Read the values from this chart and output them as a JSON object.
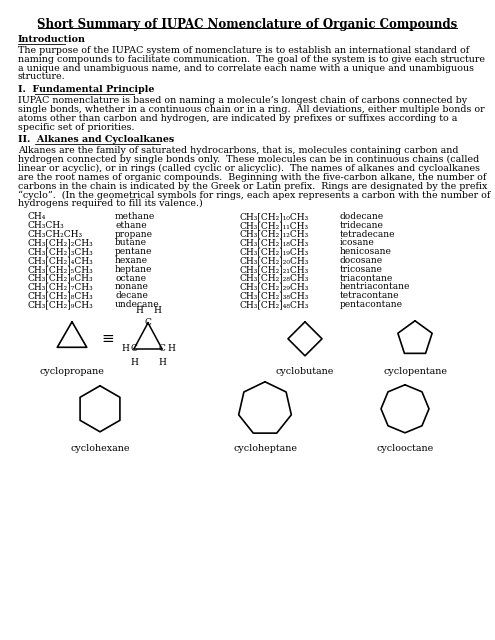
{
  "title": "Short Summary of IUPAC Nomenclature of Organic Compounds",
  "intro_heading": "Introduction",
  "intro_text": "The purpose of the IUPAC system of nomenclature is to establish an international standard of\nnaming compounds to facilitate communication.  The goal of the system is to give each structure\na unique and unambiguous name, and to correlate each name with a unique and unambiguous\nstructure.",
  "section1_heading": "I.  Fundamental Principle",
  "section1_text": "IUPAC nomenclature is based on naming a molecule’s longest chain of carbons connected by\nsingle bonds, whether in a continuous chain or in a ring.  All deviations, either multiple bonds or\natoms other than carbon and hydrogen, are indicated by prefixes or suffixes according to a\nspecific set of priorities.",
  "section2_heading": "II.  Alkanes and Cycloalkanes",
  "section2_text": "Alkanes are the family of saturated hydrocarbons, that is, molecules containing carbon and\nhydrogen connected by single bonds only.  These molecules can be in continuous chains (called\nlinear or acyclic), or in rings (called cyclic or alicyclic).  The names of alkanes and cycloalkanes\nare the root names of organic compounds.  Beginning with the five-carbon alkane, the number of\ncarbons in the chain is indicated by the Greek or Latin prefix.  Rings are designated by the prefix\n“cyclo”.  (In the geometrical symbols for rings, each apex represents a carbon with the number of\nhydrogens required to fill its valence.)",
  "left_formulas": [
    "CH₄",
    "CH₃CH₃",
    "CH₃CH₂CH₃",
    "CH₃[CH₂]₂CH₃",
    "CH₃[CH₂]₃CH₃",
    "CH₃[CH₂]₄CH₃",
    "CH₃[CH₂]₅CH₃",
    "CH₃[CH₂]₆CH₃",
    "CH₃[CH₂]₇CH₃",
    "CH₃[CH₂]₈CH₃",
    "CH₃[CH₂]₉CH₃"
  ],
  "left_names": [
    "methane",
    "ethane",
    "propane",
    "butane",
    "pentane",
    "hexane",
    "heptane",
    "octane",
    "nonane",
    "decane",
    "undecane"
  ],
  "right_formulas": [
    "CH₃[CH₂]₁₀CH₃",
    "CH₃[CH₂]₁₁CH₃",
    "CH₃[CH₂]₁₂CH₃",
    "CH₃[CH₂]₁₈CH₃",
    "CH₃[CH₂]₁₉CH₃",
    "CH₃[CH₂]₂₀CH₃",
    "CH₃[CH₂]₂₁CH₃",
    "CH₃[CH₂]₂₈CH₃",
    "CH₃[CH₂]₂₉CH₃",
    "CH₃[CH₂]₃₈CH₃",
    "CH₃[CH₂]₄₈CH₃"
  ],
  "right_names": [
    "dodecane",
    "tridecane",
    "tetradecane",
    "icosane",
    "henicosane",
    "docosane",
    "tricosane",
    "triacontane",
    "hentriacontane",
    "tetracontane",
    "pentacontane"
  ],
  "ring_labels": [
    "cyclopropane",
    "cyclobutane",
    "cyclopentane",
    "cyclohexane",
    "cycloheptane",
    "cyclooctane"
  ],
  "bg_color": "#ffffff",
  "text_color": "#000000"
}
